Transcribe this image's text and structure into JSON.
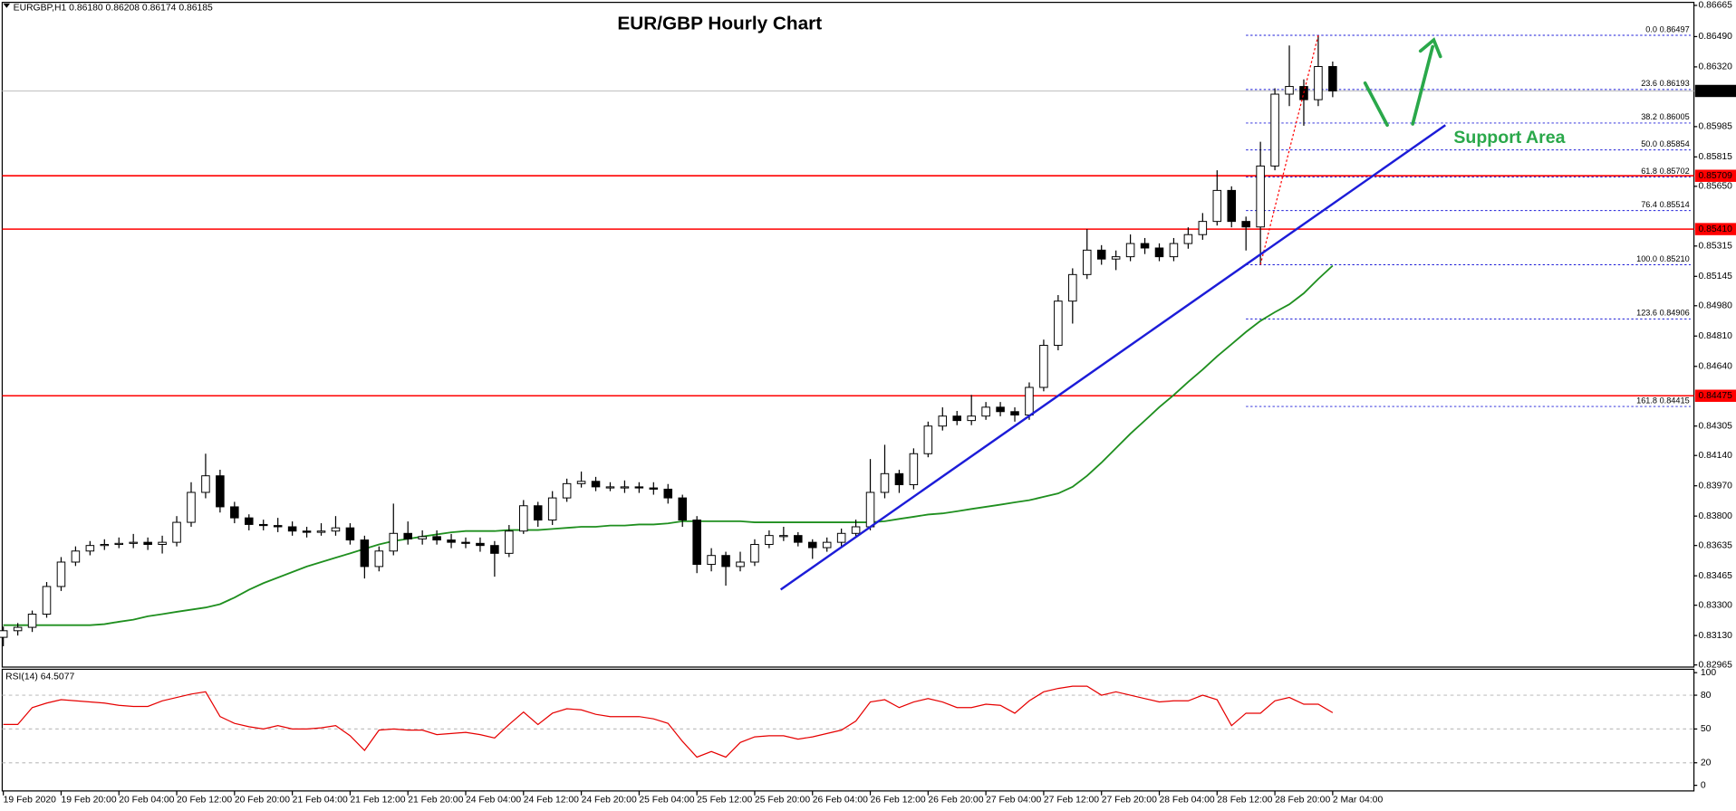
{
  "chart_data": {
    "type": "candlestick",
    "title": "EUR/GBP Hourly Chart",
    "subtitle": "EURGBP,H1  0.86180 0.86208 0.86174 0.86185",
    "annotation": "Support Area",
    "xlim": [
      -0.23,
      117
    ],
    "xticks": [
      {
        "value": 0,
        "label": "19 Feb 2020"
      },
      {
        "value": 4,
        "label": "19 Feb 20:00"
      },
      {
        "value": 8,
        "label": "20 Feb 04:00"
      },
      {
        "value": 12,
        "label": "20 Feb 12:00"
      },
      {
        "value": 16,
        "label": "20 Feb 20:00"
      },
      {
        "value": 20,
        "label": "21 Feb 04:00"
      },
      {
        "value": 24,
        "label": "21 Feb 12:00"
      },
      {
        "value": 28,
        "label": "21 Feb 20:00"
      },
      {
        "value": 32,
        "label": "24 Feb 04:00"
      },
      {
        "value": 36,
        "label": "24 Feb 12:00"
      },
      {
        "value": 40,
        "label": "24 Feb 20:00"
      },
      {
        "value": 44,
        "label": "25 Feb 04:00"
      },
      {
        "value": 48,
        "label": "25 Feb 12:00"
      },
      {
        "value": 52,
        "label": "25 Feb 20:00"
      },
      {
        "value": 56,
        "label": "26 Feb 04:00"
      },
      {
        "value": 60,
        "label": "26 Feb 12:00"
      },
      {
        "value": 64,
        "label": "26 Feb 20:00"
      },
      {
        "value": 68,
        "label": "27 Feb 04:00"
      },
      {
        "value": 72,
        "label": "27 Feb 12:00"
      },
      {
        "value": 76,
        "label": "27 Feb 20:00"
      },
      {
        "value": 80,
        "label": "28 Feb 04:00"
      },
      {
        "value": 84,
        "label": "28 Feb 12:00"
      },
      {
        "value": 88,
        "label": "28 Feb 20:00"
      },
      {
        "value": 92,
        "label": "2 Mar 04:00"
      }
    ],
    "ylim": [
      0.82953,
      0.86682
    ],
    "yticks": [
      0.86665,
      {
        "value": 0.8649,
        "label": "0.86490"
      },
      {
        "value": 0.8632,
        "label": "0.86320"
      },
      0.85985,
      0.85815,
      {
        "value": 0.8565,
        "label": "0.85650"
      },
      0.85315,
      0.85145,
      {
        "value": 0.8498,
        "label": "0.84980"
      },
      {
        "value": 0.8481,
        "label": "0.84810"
      },
      {
        "value": 0.8464,
        "label": "0.84640"
      },
      0.84305,
      {
        "value": 0.8414,
        "label": "0.84140"
      },
      {
        "value": 0.8397,
        "label": "0.83970"
      },
      {
        "value": 0.838,
        "label": "0.83800"
      },
      0.83635,
      0.83465,
      {
        "value": 0.833,
        "label": "0.83300"
      },
      {
        "value": 0.8313,
        "label": "0.83130"
      },
      0.82965
    ],
    "colors": {
      "up": "#ffffff",
      "down": "#000000"
    },
    "open": [
      0.8312,
      0.83157,
      0.83176,
      0.8325,
      0.83405,
      0.83542,
      0.83604,
      0.83635,
      0.83641,
      0.83647,
      0.83653,
      0.83641,
      0.83653,
      0.83765,
      0.83933,
      0.84026,
      0.83852,
      0.8379,
      0.83753,
      0.83747,
      0.8374,
      0.83716,
      0.83709,
      0.83716,
      0.83734,
      0.83666,
      0.83517,
      0.83604,
      0.83703,
      0.83672,
      0.83685,
      0.83666,
      0.83653,
      0.83647,
      0.83635,
      0.83591,
      0.83716,
      0.83858,
      0.83778,
      0.83902,
      0.83982,
      0.83995,
      0.83964,
      0.83964,
      0.83964,
      0.83958,
      0.83951,
      0.83902,
      0.83778,
      0.83529,
      0.83579,
      0.83517,
      0.83542,
      0.83641,
      0.83691,
      0.83691,
      0.83653,
      0.83623,
      0.83653,
      0.83703,
      0.8374,
      0.83933,
      0.84038,
      0.83976,
      0.8415,
      0.84305,
      0.84361,
      0.84336,
      0.84361,
      0.84411,
      0.84386,
      0.84367,
      0.84522,
      0.84758,
      0.85006,
      0.85155,
      0.85292,
      0.85242,
      0.85255,
      0.85329,
      0.85304,
      0.85255,
      0.85329,
      0.85379,
      0.85453,
      0.85627,
      0.85453,
      0.85422,
      0.85764,
      0.86167,
      0.8621,
      0.86136,
      0.86322
    ],
    "high": [
      0.8318,
      0.832,
      0.8327,
      0.8343,
      0.8357,
      0.8363,
      0.8366,
      0.8367,
      0.8368,
      0.837,
      0.8368,
      0.8369,
      0.838,
      0.8399,
      0.8415,
      0.8406,
      0.8388,
      0.8381,
      0.8378,
      0.8379,
      0.8377,
      0.8374,
      0.8376,
      0.838,
      0.8376,
      0.8369,
      0.8363,
      0.8387,
      0.8377,
      0.8372,
      0.8372,
      0.837,
      0.8368,
      0.8368,
      0.8366,
      0.8375,
      0.8389,
      0.8388,
      0.8394,
      0.8401,
      0.8405,
      0.8402,
      0.8399,
      0.84,
      0.8399,
      0.8399,
      0.8398,
      0.8392,
      0.838,
      0.8362,
      0.836,
      0.836,
      0.8367,
      0.8372,
      0.8374,
      0.8371,
      0.8367,
      0.8368,
      0.8373,
      0.8378,
      0.8412,
      0.842,
      0.8406,
      0.8418,
      0.8433,
      0.8441,
      0.8439,
      0.8448,
      0.8444,
      0.8444,
      0.8441,
      0.8455,
      0.8479,
      0.8504,
      0.8519,
      0.8541,
      0.8532,
      0.8529,
      0.8538,
      0.8536,
      0.8533,
      0.8536,
      0.8542,
      0.855,
      0.8574,
      0.8565,
      0.8548,
      0.859,
      0.862,
      0.8644,
      0.8625,
      0.86497,
      0.8635
    ],
    "low": [
      0.8307,
      0.8313,
      0.8315,
      0.8323,
      0.8338,
      0.8352,
      0.8358,
      0.8361,
      0.8362,
      0.8362,
      0.8361,
      0.8359,
      0.8363,
      0.8374,
      0.839,
      0.8382,
      0.8376,
      0.8372,
      0.8372,
      0.8371,
      0.8369,
      0.8368,
      0.8369,
      0.8369,
      0.8364,
      0.8345,
      0.8349,
      0.8358,
      0.8364,
      0.8364,
      0.8364,
      0.8362,
      0.8362,
      0.836,
      0.8346,
      0.8357,
      0.837,
      0.8374,
      0.8375,
      0.8388,
      0.8396,
      0.8394,
      0.8394,
      0.8393,
      0.8393,
      0.8392,
      0.8387,
      0.8374,
      0.8348,
      0.8349,
      0.8341,
      0.8349,
      0.8352,
      0.8362,
      0.8366,
      0.8363,
      0.8356,
      0.836,
      0.8363,
      0.8368,
      0.8372,
      0.839,
      0.8393,
      0.8395,
      0.8413,
      0.8428,
      0.8431,
      0.8431,
      0.8434,
      0.8436,
      0.8433,
      0.8434,
      0.845,
      0.8473,
      0.8488,
      0.8513,
      0.8521,
      0.8518,
      0.8523,
      0.8527,
      0.8523,
      0.8523,
      0.853,
      0.8535,
      0.8543,
      0.8542,
      0.8529,
      0.8521,
      0.8574,
      0.861,
      0.8599,
      0.861,
      0.8615
    ],
    "close": [
      0.83157,
      0.83176,
      0.8325,
      0.83405,
      0.83542,
      0.83604,
      0.83635,
      0.83641,
      0.83647,
      0.83653,
      0.83641,
      0.83653,
      0.83765,
      0.83933,
      0.84026,
      0.83852,
      0.8379,
      0.83753,
      0.83747,
      0.8374,
      0.83716,
      0.83709,
      0.83716,
      0.83734,
      0.83666,
      0.83517,
      0.83604,
      0.83703,
      0.83672,
      0.83685,
      0.83666,
      0.83653,
      0.83647,
      0.83635,
      0.83591,
      0.83716,
      0.83858,
      0.83778,
      0.83902,
      0.83982,
      0.83995,
      0.83964,
      0.83964,
      0.83964,
      0.83958,
      0.83951,
      0.83902,
      0.83778,
      0.83529,
      0.83579,
      0.83517,
      0.83542,
      0.83641,
      0.83691,
      0.83691,
      0.83653,
      0.83623,
      0.83653,
      0.83703,
      0.8374,
      0.83933,
      0.84038,
      0.83976,
      0.8415,
      0.84305,
      0.84361,
      0.84336,
      0.84361,
      0.84411,
      0.84386,
      0.84367,
      0.84522,
      0.84758,
      0.85006,
      0.85155,
      0.85292,
      0.85242,
      0.85255,
      0.85329,
      0.85304,
      0.85255,
      0.85329,
      0.85379,
      0.85453,
      0.85627,
      0.85453,
      0.85422,
      0.85764,
      0.86167,
      0.8621,
      0.86136,
      0.86322,
      0.86185
    ],
    "ma": {
      "color": "#1f8f1f",
      "values": [
        0.83188,
        0.83188,
        0.83188,
        0.83188,
        0.83188,
        0.83188,
        0.83188,
        0.83194,
        0.83207,
        0.83219,
        0.83238,
        0.8325,
        0.83263,
        0.83275,
        0.83287,
        0.83306,
        0.83343,
        0.83387,
        0.83424,
        0.83455,
        0.83486,
        0.83517,
        0.83542,
        0.83567,
        0.83591,
        0.83616,
        0.83641,
        0.8366,
        0.83672,
        0.83685,
        0.83697,
        0.83709,
        0.83716,
        0.83716,
        0.83716,
        0.83722,
        0.83722,
        0.83722,
        0.83728,
        0.83734,
        0.8374,
        0.8374,
        0.83747,
        0.83747,
        0.83753,
        0.83753,
        0.83759,
        0.83771,
        0.83771,
        0.83771,
        0.83771,
        0.83771,
        0.83765,
        0.83765,
        0.83765,
        0.83765,
        0.83765,
        0.83765,
        0.83765,
        0.83765,
        0.83765,
        0.83771,
        0.83784,
        0.83796,
        0.83809,
        0.83815,
        0.83827,
        0.8384,
        0.83852,
        0.83864,
        0.83877,
        0.83889,
        0.83908,
        0.83927,
        0.83964,
        0.84026,
        0.841,
        0.84181,
        0.84262,
        0.84336,
        0.84411,
        0.84479,
        0.84553,
        0.84622,
        0.84696,
        0.84764,
        0.84833,
        0.84895,
        0.84944,
        0.84988,
        0.8505,
        0.8513,
        0.85205
      ]
    },
    "levels": {
      "color": "#ff0000",
      "items": [
        {
          "value": 0.85709,
          "label": "0.85709"
        },
        {
          "value": 0.8541,
          "label": "0.85410"
        },
        {
          "value": 0.84475,
          "label": "0.84475"
        }
      ]
    },
    "current": {
      "value": 0.86185,
      "label": "0.86185"
    },
    "fibonacci": {
      "color": "#1c1cd8",
      "start": 86,
      "levels": [
        {
          "value": 0.86497,
          "label": "0.0 0.86497"
        },
        {
          "value": 0.86193,
          "label": "23.6 0.86193"
        },
        {
          "value": 0.86005,
          "label": "38.2 0.86005"
        },
        {
          "value": 0.85854,
          "label": "50.0 0.85854"
        },
        {
          "value": 0.85702,
          "label": "61.8 0.85702"
        },
        {
          "value": 0.85514,
          "label": "76.4 0.85514"
        },
        {
          "value": 0.8521,
          "label": "100.0 0.85210"
        },
        {
          "value": 0.84906,
          "label": "123.6 0.84906"
        },
        {
          "value": 0.84415,
          "label": "161.8 0.84415"
        }
      ]
    },
    "trendline": {
      "color": "#1c1cd8",
      "x": [
        53.8,
        99.8
      ],
      "y": [
        0.83388,
        0.85993
      ]
    },
    "rsi": {
      "label": "RSI(14) 64.5077",
      "color": "#e60000",
      "ylim": [
        -5,
        103
      ],
      "yticks": [
        100,
        80,
        50,
        20,
        0
      ],
      "levels": [
        80,
        50,
        20
      ],
      "values": [
        54,
        54,
        69,
        73,
        76,
        75,
        74,
        73,
        71,
        70,
        70,
        75,
        78,
        81,
        83,
        61,
        55,
        52,
        50,
        53,
        50,
        50,
        51,
        53,
        44,
        31,
        49,
        50,
        49,
        49,
        45,
        46,
        47,
        45,
        42,
        54,
        65,
        54,
        64,
        68,
        67,
        63,
        61,
        61,
        61,
        59,
        55,
        39,
        25,
        30,
        25,
        38,
        43,
        44,
        44,
        41,
        43,
        46,
        49,
        57,
        74,
        76,
        69,
        74,
        77,
        74,
        69,
        69,
        72,
        71,
        64,
        75,
        83,
        86,
        88,
        88,
        80,
        83,
        80,
        77,
        74,
        75,
        75,
        80,
        76,
        53,
        64,
        64,
        75,
        78,
        72,
        72,
        64.5
      ]
    }
  }
}
